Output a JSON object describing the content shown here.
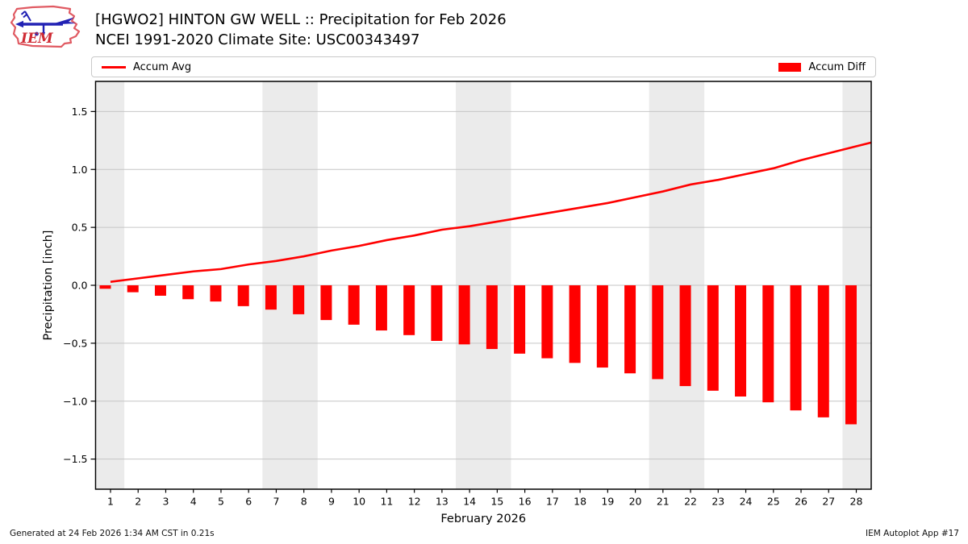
{
  "header": {
    "title_line1": "[HGWO2] HINTON GW WELL :: Precipitation for Feb 2026",
    "title_line2": "NCEI 1991-2020 Climate Site: USC00343497",
    "logo": {
      "text": "IEM",
      "outline_color": "#e05a62",
      "text_color": "#cf2a33",
      "vane_color": "#2121b4"
    }
  },
  "legend": {
    "items": [
      {
        "label": "Accum Avg",
        "swatch": "line",
        "color": "#ff0000"
      },
      {
        "label": "Accum Diff",
        "swatch": "bar",
        "color": "#ff0000"
      }
    ]
  },
  "footer": {
    "left": "Generated at 24 Feb 2026 1:34 AM CST in 0.21s",
    "right": "IEM Autoplot App #17"
  },
  "chart_data": {
    "type": "bar",
    "title": "[HGWO2] HINTON GW WELL :: Precipitation for Feb 2026",
    "subtitle": "NCEI 1991-2020 Climate Site: USC00343497",
    "xlabel": "February 2026",
    "ylabel": "Precipitation [inch]",
    "categories": [
      "1",
      "2",
      "3",
      "4",
      "5",
      "6",
      "7",
      "8",
      "9",
      "10",
      "11",
      "12",
      "13",
      "14",
      "15",
      "16",
      "17",
      "18",
      "19",
      "20",
      "21",
      "22",
      "23",
      "24",
      "25",
      "26",
      "27",
      "28"
    ],
    "series": [
      {
        "name": "Accum Avg",
        "type": "line",
        "color": "#ff0000",
        "values": [
          0.03,
          0.06,
          0.09,
          0.12,
          0.14,
          0.18,
          0.21,
          0.25,
          0.3,
          0.34,
          0.39,
          0.43,
          0.48,
          0.51,
          0.55,
          0.59,
          0.63,
          0.67,
          0.71,
          0.76,
          0.81,
          0.87,
          0.91,
          0.96,
          1.01,
          1.08,
          1.14,
          1.2
        ]
      },
      {
        "name": "Accum Diff",
        "type": "bar",
        "color": "#ff0000",
        "values": [
          -0.03,
          -0.06,
          -0.09,
          -0.12,
          -0.14,
          -0.18,
          -0.21,
          -0.25,
          -0.3,
          -0.34,
          -0.39,
          -0.43,
          -0.48,
          -0.51,
          -0.55,
          -0.59,
          -0.63,
          -0.67,
          -0.71,
          -0.76,
          -0.81,
          -0.87,
          -0.91,
          -0.96,
          -1.01,
          -1.08,
          -1.14,
          -1.2
        ]
      }
    ],
    "ylim": [
      -1.76,
      1.76
    ],
    "yticks": [
      -1.5,
      -1.0,
      -0.5,
      0.0,
      0.5,
      1.0,
      1.5
    ],
    "xlim_days": [
      0.46,
      28.54
    ],
    "grid": true,
    "grid_color": "#c6c6c6",
    "weekend_days": [
      1,
      7,
      8,
      14,
      15,
      21,
      22,
      28
    ],
    "weekend_band_color": "#ebebeb",
    "legend_position": "top"
  }
}
